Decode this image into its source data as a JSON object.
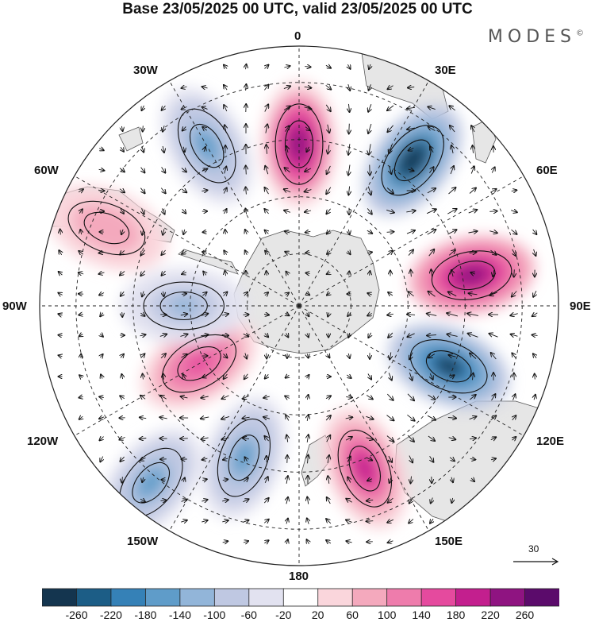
{
  "header": {
    "title": "Base 23/05/2025 00 UTC, valid 23/05/2025 00 UTC",
    "logo": "MODES",
    "logo_mark": "©"
  },
  "map": {
    "projection": "south-polar-stereographic",
    "longitude_labels": [
      "0",
      "30E",
      "60E",
      "90E",
      "120E",
      "150E",
      "180",
      "150W",
      "120W",
      "90W",
      "60W",
      "30W"
    ],
    "reference_vector": {
      "value": "30"
    },
    "colors": {
      "land": "#e6e6e6",
      "coast": "#555555",
      "grid": "#222222",
      "contour": "#111111"
    },
    "anomaly_centers": [
      {
        "lon": 0,
        "lat": -55,
        "value": 240,
        "label": "positive-anomaly-0"
      },
      {
        "lon": 38,
        "lat": -50,
        "value": -280,
        "label": "negative-anomaly-38e"
      },
      {
        "lon": 80,
        "lat": -52,
        "value": 250,
        "label": "positive-anomaly-80e"
      },
      {
        "lon": 112,
        "lat": -55,
        "value": -260,
        "label": "negative-anomaly-112e"
      },
      {
        "lon": 158,
        "lat": -52,
        "value": 200,
        "label": "positive-anomaly-158e"
      },
      {
        "lon": -160,
        "lat": -55,
        "value": -140,
        "label": "negative-anomaly-160w"
      },
      {
        "lon": -140,
        "lat": -40,
        "value": -140,
        "label": "negative-anomaly-140w"
      },
      {
        "lon": -120,
        "lat": -65,
        "value": 170,
        "label": "positive-anomaly-120w"
      },
      {
        "lon": -90,
        "lat": -65,
        "value": -120,
        "label": "negative-anomaly-90w"
      },
      {
        "lon": -68,
        "lat": -45,
        "value": 100,
        "label": "positive-anomaly-68w"
      },
      {
        "lon": -30,
        "lat": -50,
        "value": -150,
        "label": "negative-anomaly-30w"
      }
    ]
  },
  "colorbar": {
    "colors": [
      "#14354f",
      "#1c5d86",
      "#3581b7",
      "#5f9cc9",
      "#92b5d9",
      "#bfc8e2",
      "#e2e2f0",
      "#ffffff",
      "#fad6dc",
      "#f4a9bd",
      "#ee7cac",
      "#e54a9e",
      "#c31f8e",
      "#8f1481",
      "#5b0b6b"
    ],
    "labels": [
      "-260",
      "-220",
      "-180",
      "-140",
      "-100",
      "-60",
      "-20",
      "20",
      "60",
      "100",
      "140",
      "180",
      "220",
      "260"
    ]
  }
}
